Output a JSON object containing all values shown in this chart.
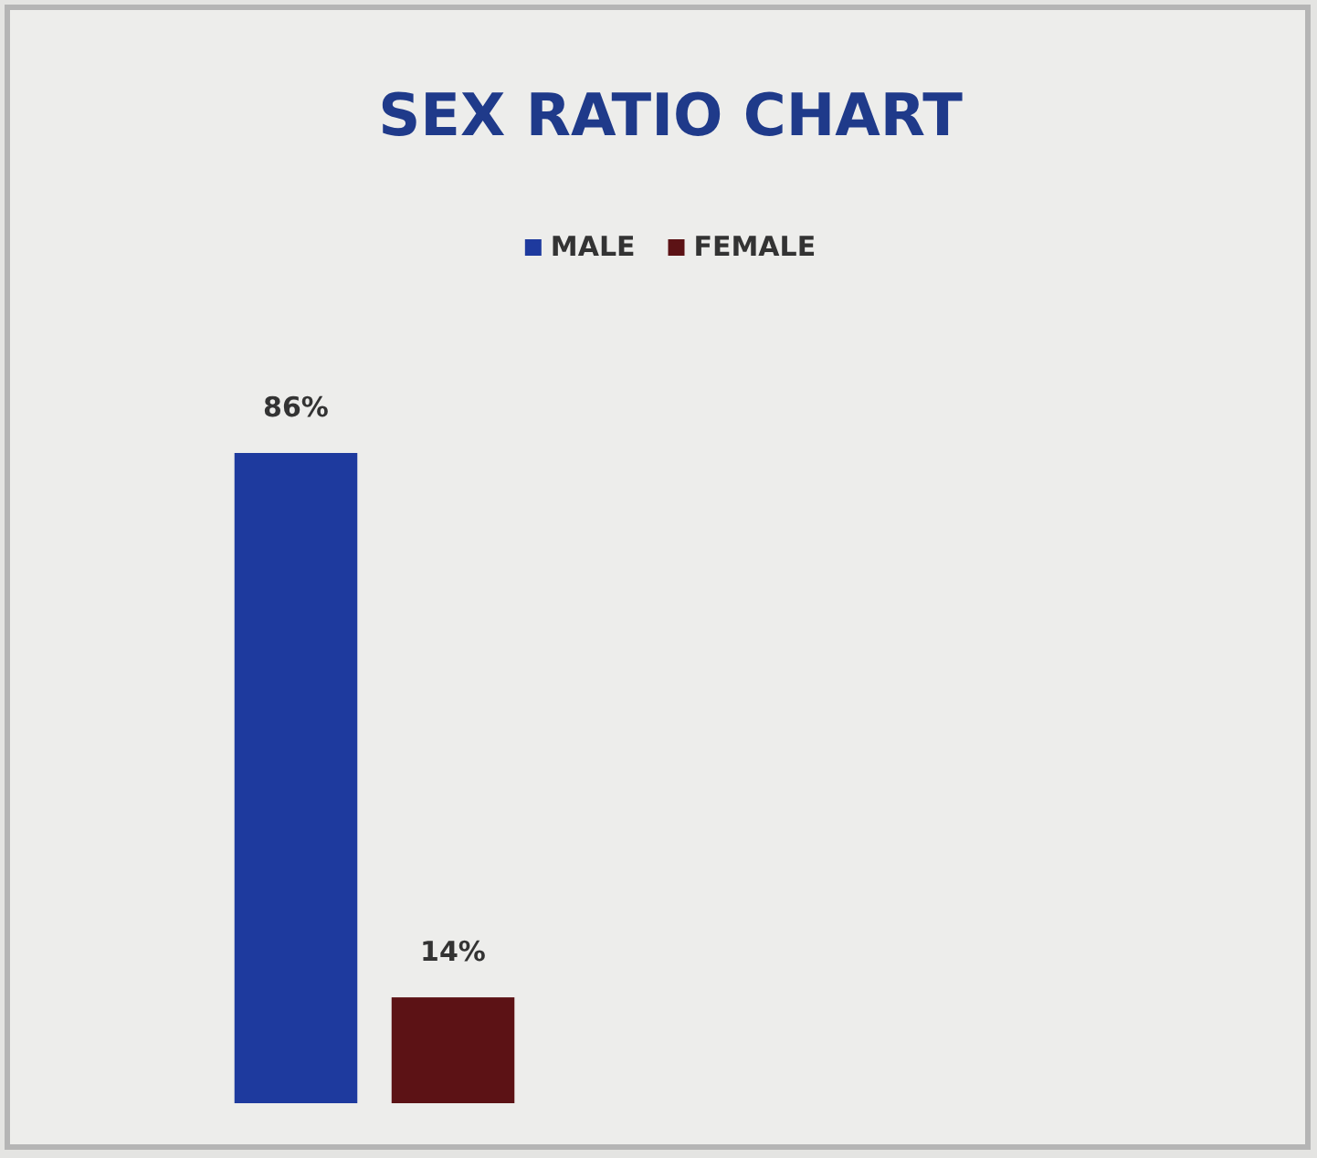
{
  "chart_data": {
    "type": "bar",
    "title": "SEX RATIO CHART",
    "categories": [
      null
    ],
    "series": [
      {
        "name": "MALE",
        "color": "#1e3a9e",
        "values": [
          86
        ],
        "value_labels": [
          "86%"
        ]
      },
      {
        "name": "FEMALE",
        "color": "#5c1215",
        "values": [
          14
        ],
        "value_labels": [
          "14%"
        ]
      }
    ],
    "legend": "top",
    "grid": false
  }
}
